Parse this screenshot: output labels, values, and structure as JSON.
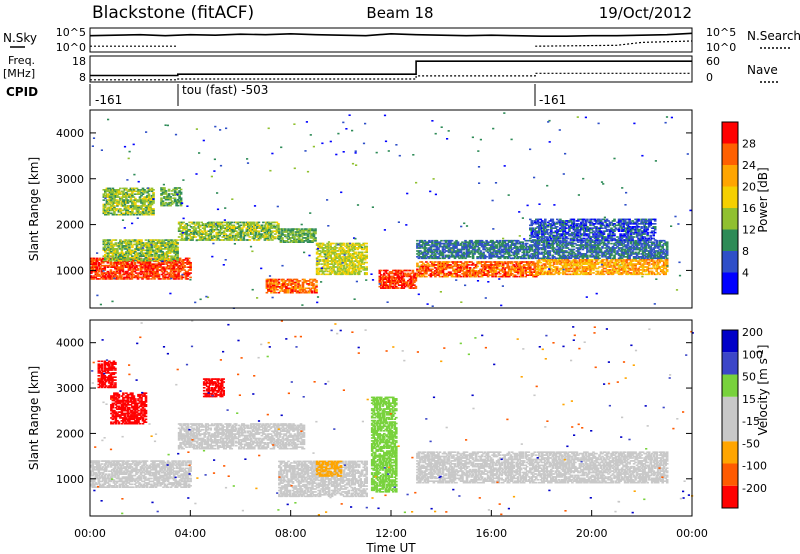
{
  "header": {
    "station": "Blackstone (fitACF)",
    "beam": "Beam 18",
    "date": "19/Oct/2012"
  },
  "noise_panel": {
    "left_label": "N.Sky",
    "right_label": "N.Search",
    "left_ticks": [
      "10^5",
      "10^0"
    ],
    "right_ticks": [
      "10^5",
      "10^0"
    ]
  },
  "freq_panel": {
    "left_label_1": "Freq.",
    "left_label_2": "[MHz]",
    "right_label": "Nave",
    "left_ticks": [
      "18",
      "8"
    ],
    "right_ticks": [
      "60",
      "0"
    ]
  },
  "cpid_panel": {
    "label": "CPID",
    "segments": [
      {
        "start_hour": 0,
        "text": "-161"
      },
      {
        "start_hour": 3.5,
        "text": "tou (fast) -503"
      },
      {
        "start_hour": 17.75,
        "text": "-161"
      }
    ]
  },
  "colors": {
    "power_scale": [
      "#0000ff",
      "#2f4fc8",
      "#2e8b57",
      "#90c030",
      "#f5d000",
      "#ffa500",
      "#ff6000",
      "#ff0000"
    ],
    "velocity_scale": [
      "#ff0000",
      "#ff5a00",
      "#ffa500",
      "#c8c8c8",
      "#c8c8c8",
      "#78d23c",
      "#3c46c8",
      "#0000c8"
    ]
  },
  "chart_data": [
    {
      "type": "heatmap",
      "panel": "power",
      "ylabel": "Slant Range [km]",
      "ylim": [
        180,
        4500
      ],
      "xlim_hours": [
        0,
        24
      ],
      "yticks": [
        1000,
        2000,
        3000,
        4000
      ],
      "colorbar_label": "Power [dB]",
      "colorbar_ticks": [
        "4",
        "8",
        "12",
        "16",
        "20",
        "24",
        "28"
      ],
      "colorbar_range": [
        0,
        32
      ],
      "bands": [
        {
          "t0": 0.0,
          "t1": 4.0,
          "r0": 800,
          "r1": 1250,
          "level": 28
        },
        {
          "t0": 0.5,
          "t1": 3.5,
          "r0": 1200,
          "r1": 1650,
          "level": 14
        },
        {
          "t0": 3.5,
          "t1": 7.5,
          "r0": 1650,
          "r1": 2050,
          "level": 14
        },
        {
          "t0": 7.5,
          "t1": 9.0,
          "r0": 1600,
          "r1": 1900,
          "level": 12
        },
        {
          "t0": 0.5,
          "t1": 2.5,
          "r0": 2200,
          "r1": 2800,
          "level": 14
        },
        {
          "t0": 2.8,
          "t1": 3.6,
          "r0": 2400,
          "r1": 2800,
          "level": 12
        },
        {
          "t0": 7.0,
          "t1": 9.0,
          "r0": 500,
          "r1": 800,
          "level": 26
        },
        {
          "t0": 9.0,
          "t1": 11.0,
          "r0": 900,
          "r1": 1600,
          "level": 16
        },
        {
          "t0": 11.5,
          "t1": 13.0,
          "r0": 600,
          "r1": 1000,
          "level": 28
        },
        {
          "t0": 13.0,
          "t1": 17.8,
          "r0": 850,
          "r1": 1200,
          "level": 26
        },
        {
          "t0": 17.8,
          "t1": 23.0,
          "r0": 900,
          "r1": 1250,
          "level": 22
        },
        {
          "t0": 13.0,
          "t1": 23.0,
          "r0": 1250,
          "r1": 1650,
          "level": 8
        },
        {
          "t0": 17.5,
          "t1": 22.5,
          "r0": 1650,
          "r1": 2100,
          "level": 6
        }
      ]
    },
    {
      "type": "heatmap",
      "panel": "velocity",
      "ylabel": "Slant Range [km]",
      "xlabel": "Time UT",
      "ylim": [
        180,
        4500
      ],
      "xlim_hours": [
        0,
        24
      ],
      "yticks": [
        1000,
        2000,
        3000,
        4000
      ],
      "xticks": [
        "00:00",
        "04:00",
        "08:00",
        "12:00",
        "16:00",
        "20:00",
        "00:00"
      ],
      "colorbar_label": "Velocity [m s^-1]",
      "colorbar_ticks": [
        "-200",
        "-100",
        "-50",
        "-15",
        "15",
        "50",
        "100",
        "200"
      ],
      "bands": [
        {
          "t0": 0.0,
          "t1": 4.0,
          "r0": 800,
          "r1": 1400,
          "level": 0
        },
        {
          "t0": 3.5,
          "t1": 8.5,
          "r0": 1650,
          "r1": 2200,
          "level": 0
        },
        {
          "t0": 7.5,
          "t1": 11.0,
          "r0": 600,
          "r1": 1400,
          "level": 0
        },
        {
          "t0": 13.0,
          "t1": 23.0,
          "r0": 900,
          "r1": 1600,
          "level": 0
        },
        {
          "t0": 0.8,
          "t1": 2.2,
          "r0": 2200,
          "r1": 2900,
          "level": -220
        },
        {
          "t0": 4.5,
          "t1": 5.3,
          "r0": 2800,
          "r1": 3200,
          "level": -220
        },
        {
          "t0": 9.0,
          "t1": 10.0,
          "r0": 1050,
          "r1": 1400,
          "level": -60
        },
        {
          "t0": 11.2,
          "t1": 12.2,
          "r0": 700,
          "r1": 2800,
          "level": 30
        },
        {
          "t0": 0.3,
          "t1": 1.0,
          "r0": 3000,
          "r1": 3600,
          "level": -220
        }
      ]
    }
  ],
  "noise_series": {
    "sky": [
      [
        0,
        3.4
      ],
      [
        1,
        3.5
      ],
      [
        2,
        3.6
      ],
      [
        3,
        3.4
      ],
      [
        4,
        3.6
      ],
      [
        5,
        3.5
      ],
      [
        6,
        3.7
      ],
      [
        7,
        3.6
      ],
      [
        8,
        3.8
      ],
      [
        9,
        3.6
      ],
      [
        10,
        3.5
      ],
      [
        11,
        3.4
      ],
      [
        12,
        3.8
      ],
      [
        13,
        3.6
      ],
      [
        14,
        3.5
      ],
      [
        15,
        3.4
      ],
      [
        16,
        3.5
      ],
      [
        17,
        3.4
      ],
      [
        18,
        3.3
      ],
      [
        19,
        3.3
      ],
      [
        20,
        3.4
      ],
      [
        21,
        3.4
      ],
      [
        22,
        3.5
      ],
      [
        23,
        3.6
      ],
      [
        24,
        3.9
      ]
    ],
    "search": [
      [
        0,
        1.2
      ],
      [
        3.5,
        1.2
      ],
      [
        3.5,
        null
      ],
      [
        17.75,
        null
      ],
      [
        17.75,
        1.2
      ],
      [
        21,
        1.4
      ],
      [
        22,
        2.0
      ],
      [
        24,
        2.3
      ]
    ]
  },
  "freq_series": {
    "freq": [
      [
        0,
        10.5
      ],
      [
        3.5,
        10.5
      ],
      [
        3.5,
        11.0
      ],
      [
        13,
        11.0
      ],
      [
        13,
        16.0
      ],
      [
        24,
        16.0
      ]
    ],
    "nave": [
      [
        0,
        5
      ],
      [
        3.5,
        5
      ],
      [
        3.5,
        7
      ],
      [
        13,
        7
      ],
      [
        13,
        14
      ],
      [
        17.75,
        14
      ],
      [
        17.75,
        20
      ],
      [
        24,
        20
      ]
    ]
  }
}
